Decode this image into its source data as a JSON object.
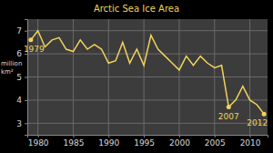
{
  "chart_data": {
    "type": "line",
    "title": "Arctic Sea Ice Area",
    "ylabel": "million km²",
    "x": [
      1979,
      1980,
      1981,
      1982,
      1983,
      1984,
      1985,
      1986,
      1987,
      1988,
      1989,
      1990,
      1991,
      1992,
      1993,
      1994,
      1995,
      1996,
      1997,
      1998,
      1999,
      2000,
      2001,
      2002,
      2003,
      2004,
      2005,
      2006,
      2007,
      2008,
      2009,
      2010,
      2011,
      2012
    ],
    "values": [
      6.6,
      7.0,
      6.3,
      6.6,
      6.7,
      6.2,
      6.1,
      6.6,
      6.2,
      6.4,
      6.2,
      5.6,
      5.7,
      6.5,
      5.6,
      6.2,
      5.5,
      6.8,
      6.2,
      5.9,
      5.6,
      5.3,
      5.9,
      5.5,
      5.9,
      5.6,
      5.4,
      5.5,
      3.7,
      4.0,
      4.6,
      4.0,
      3.8,
      3.4
    ],
    "color": "#f2d35b",
    "xlim": [
      1978.5,
      2012.5
    ],
    "xticks": [
      1980,
      1985,
      1990,
      1995,
      2000,
      2005,
      2010
    ],
    "ylim": [
      2.5,
      7.5
    ],
    "yticks": [
      3,
      4,
      5,
      6,
      7
    ],
    "grid": true,
    "annotations": [
      {
        "text": "1979",
        "x": 1979,
        "y": 6.6
      },
      {
        "text": "2007",
        "x": 2007,
        "y": 3.7
      },
      {
        "text": "2012",
        "x": 2012,
        "y": 3.4
      }
    ]
  }
}
